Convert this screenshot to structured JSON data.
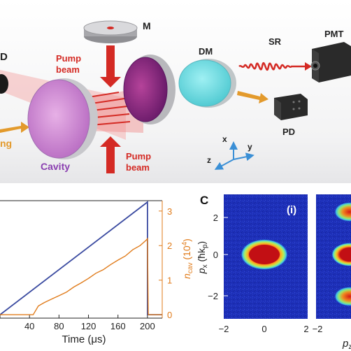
{
  "panel_a": {
    "labels": {
      "mirror": "M",
      "dichroic": "DM",
      "superradiance": "SR",
      "pmt": "PMT",
      "photodiode": "PD",
      "pump_top_1": "Pump",
      "pump_top_2": "beam",
      "pump_bottom_1": "Pump",
      "pump_bottom_2": "beam",
      "cavity": "Cavity",
      "edge_fragment_1": "ng",
      "edge_fragment_2": "D",
      "axis_x": "x",
      "axis_y": "y",
      "axis_z": "z"
    },
    "colors": {
      "pump": "#d42a24",
      "cavity_text": "#8a3fb0",
      "output_arrow": "#e39a2c"
    }
  },
  "panel_b": {
    "chart_data": {
      "type": "line",
      "xlabel": "Time (μs)",
      "x_ticks": [
        "0",
        "40",
        "80",
        "120",
        "160",
        "200"
      ],
      "xlim": [
        0,
        220
      ],
      "y2label": "n_cav (10^4)",
      "y2_ticks": [
        "0",
        "1",
        "2",
        "3"
      ],
      "y2lim": [
        -0.1,
        3.3
      ],
      "series": [
        {
          "color": "#3a4aa0",
          "points": [
            [
              0,
              0.0
            ],
            [
              200,
              3.5
            ],
            [
              200,
              0.0
            ],
            [
              220,
              0.0
            ]
          ]
        },
        {
          "color": "#e07b1a",
          "points": [
            [
              0,
              0.0
            ],
            [
              45,
              0.0
            ],
            [
              52,
              0.25
            ],
            [
              60,
              0.35
            ],
            [
              70,
              0.45
            ],
            [
              80,
              0.55
            ],
            [
              90,
              0.65
            ],
            [
              100,
              0.8
            ],
            [
              110,
              0.92
            ],
            [
              120,
              1.05
            ],
            [
              130,
              1.2
            ],
            [
              140,
              1.3
            ],
            [
              150,
              1.45
            ],
            [
              160,
              1.58
            ],
            [
              170,
              1.7
            ],
            [
              180,
              1.88
            ],
            [
              190,
              2.0
            ],
            [
              198,
              2.15
            ],
            [
              200,
              2.2
            ],
            [
              201,
              0.0
            ],
            [
              220,
              0.0
            ]
          ]
        }
      ]
    }
  },
  "panel_c": {
    "panel_letter": "C",
    "subpanel_label": "(i)",
    "ylabel_main": "p",
    "ylabel_sub": "x",
    "ylabel_unit": "(ħk",
    "ylabel_unit_sub": "p",
    "ylabel_close": ")",
    "y_ticks": [
      "2",
      "0",
      "−2"
    ],
    "x_ticks": [
      "−2",
      "0",
      "2"
    ],
    "x_tick_right": "−2",
    "xlabel_right": "p",
    "xlabel_right_sub": "z"
  }
}
